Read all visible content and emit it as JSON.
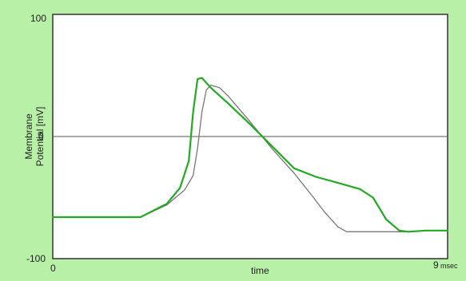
{
  "chart_data": {
    "type": "line",
    "xlabel": "time",
    "ylabel_line1": "Membrane",
    "ylabel_line2": "Potential [mV]",
    "x_unit_label": "msec",
    "xlim": [
      0,
      9
    ],
    "ylim": [
      -100,
      100
    ],
    "x_tick_labels": [
      "0",
      "9"
    ],
    "y_tick_labels": [
      "100",
      "0",
      "-100"
    ],
    "y_ticks": [
      100,
      0,
      -100
    ],
    "reference_line_y": 0,
    "grid": false,
    "legend": "none",
    "series": [
      {
        "color": "#22aa22",
        "x": [
          0,
          1.0,
          2.0,
          2.6,
          2.9,
          3.1,
          3.2,
          3.3,
          3.4,
          3.5,
          3.6,
          4.0,
          4.5,
          5.0,
          5.5,
          6.0,
          6.5,
          7.0,
          7.3,
          7.6,
          7.9,
          8.1,
          8.5,
          9.0
        ],
        "y": [
          -66,
          -66,
          -66,
          -55,
          -42,
          -20,
          20,
          47,
          48,
          44,
          40,
          27,
          10,
          -8,
          -26,
          -33,
          -38,
          -43,
          -50,
          -68,
          -77,
          -78,
          -77,
          -77
        ]
      },
      {
        "color": "#777777",
        "x": [
          0,
          1.0,
          2.0,
          2.6,
          3.0,
          3.2,
          3.3,
          3.4,
          3.5,
          3.6,
          3.8,
          4.0,
          4.5,
          5.0,
          5.5,
          5.9,
          6.2,
          6.5,
          6.7,
          7.0,
          7.5,
          8.0,
          8.5,
          9.0
        ],
        "y": [
          -66,
          -66,
          -66,
          -56,
          -44,
          -32,
          -10,
          20,
          38,
          42,
          40,
          33,
          12,
          -10,
          -30,
          -48,
          -62,
          -74,
          -78,
          -78,
          -78,
          -78,
          -77,
          -77
        ]
      }
    ]
  }
}
